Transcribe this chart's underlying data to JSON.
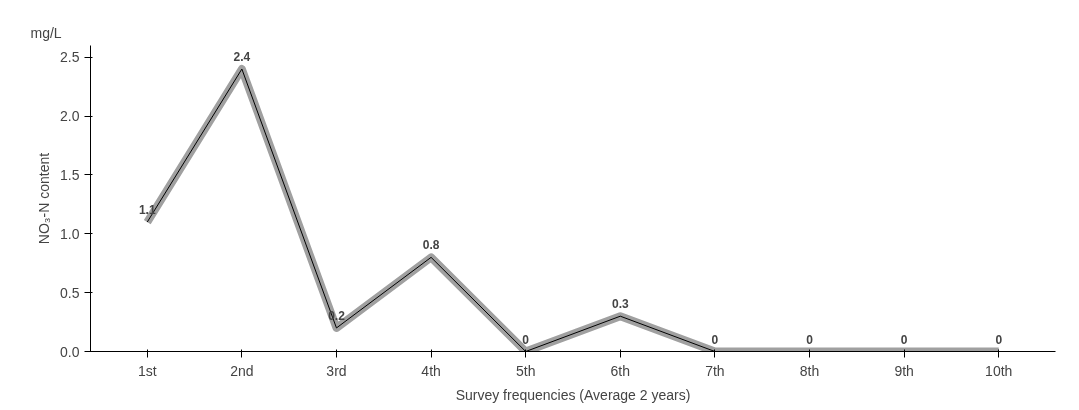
{
  "chart_data": {
    "type": "line",
    "xlabel": "Survey frequencies (Average 2 years)",
    "ylabel": "NO₃-N content",
    "annotations": [
      "mg/L"
    ],
    "categories": [
      "1st",
      "2nd",
      "3rd",
      "4th",
      "5th",
      "6th",
      "7th",
      "8th",
      "9th",
      "10th"
    ],
    "values": [
      1.1,
      2.4,
      0.2,
      0.8,
      0,
      0.3,
      0,
      0,
      0,
      0
    ],
    "color": "#a0a0a0",
    "ylim": [
      0,
      2.6
    ],
    "yticks": [
      {
        "value": 0,
        "label": "0.0"
      },
      {
        "value": 0.5,
        "label": "0.5"
      },
      {
        "value": 1,
        "label": "1.0"
      },
      {
        "value": 1.5,
        "label": "1.5"
      },
      {
        "value": 2,
        "label": "2.0"
      },
      {
        "value": 2.5,
        "label": "2.5"
      }
    ],
    "data_labels": true,
    "grid": false,
    "marker": "none",
    "line_style": "solid"
  }
}
